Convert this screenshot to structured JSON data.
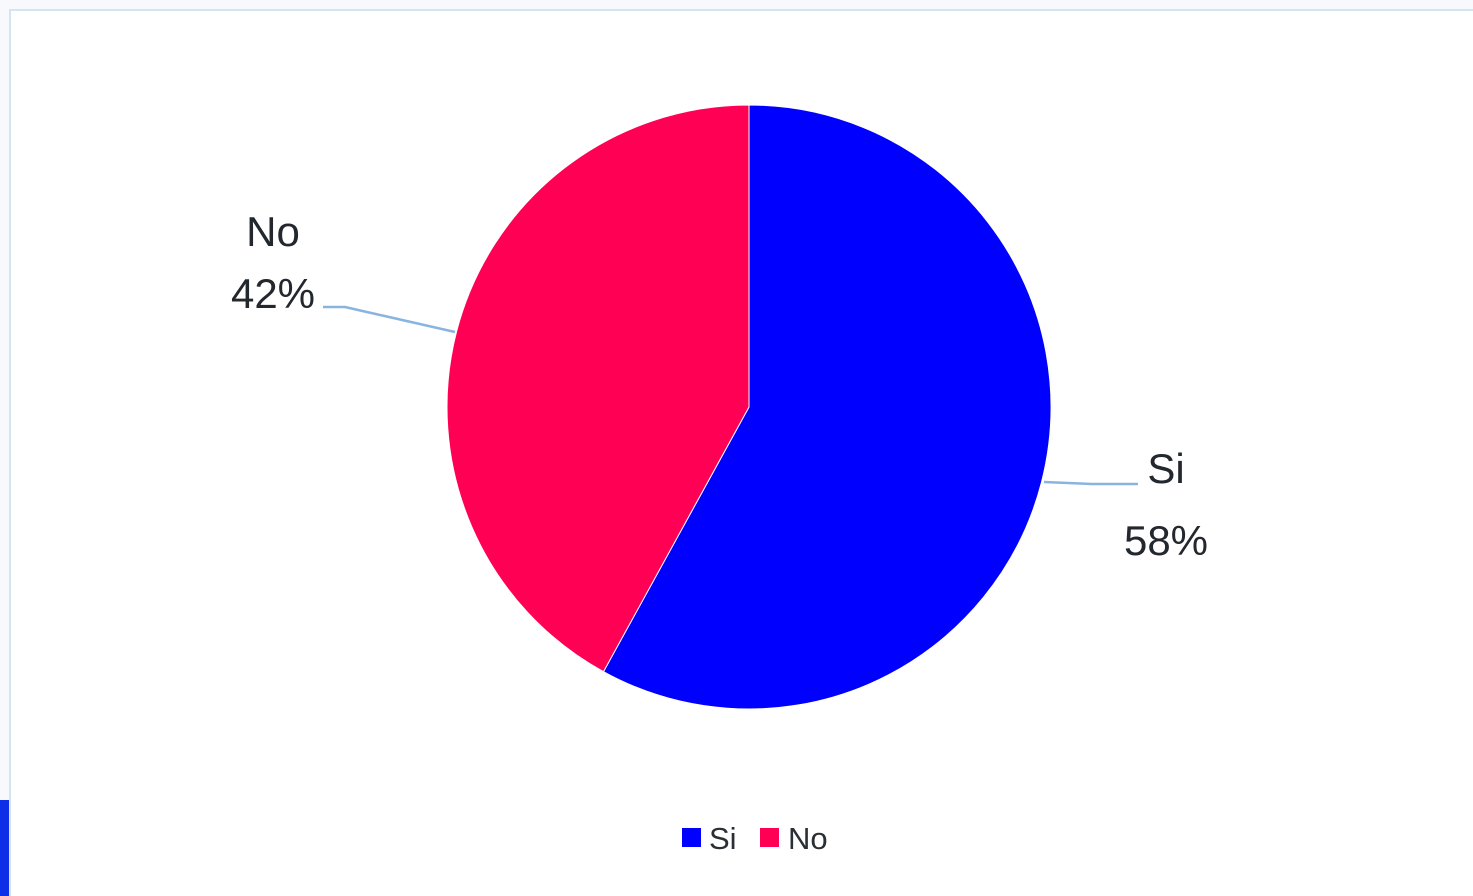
{
  "chart_data": {
    "type": "pie",
    "title": "",
    "slices": [
      {
        "label": "Si",
        "value": 58,
        "display": "58%",
        "color": "#0000ff"
      },
      {
        "label": "No",
        "value": 42,
        "display": "42%",
        "color": "#ff0055"
      }
    ],
    "legend": {
      "position": "bottom",
      "items": [
        {
          "label": "Si",
          "color": "#0000ff"
        },
        {
          "label": "No",
          "color": "#ff0055"
        }
      ]
    },
    "leader_line_color": "#8ab4e0"
  }
}
